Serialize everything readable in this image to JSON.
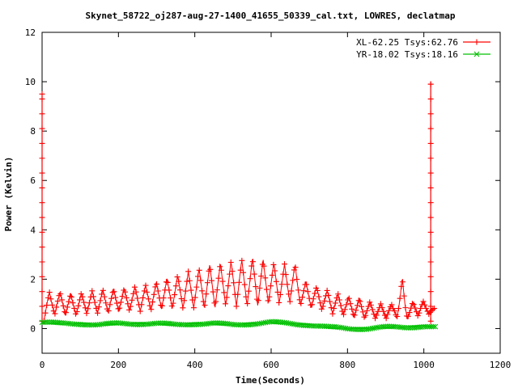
{
  "chart_data": {
    "type": "line",
    "title": "Skynet_58722_oj287-aug-27-1400_41655_50339_cal.txt, LOWRES, declatmap",
    "xlabel": "Time(Seconds)",
    "ylabel": "Power (Kelvin)",
    "xlim": [
      0,
      1200
    ],
    "ylim": [
      -1,
      12
    ],
    "xticks": [
      0,
      200,
      400,
      600,
      800,
      1000,
      1200
    ],
    "yticks": [
      0,
      2,
      4,
      6,
      8,
      10,
      12
    ],
    "grid": false,
    "legend_position": "top-right",
    "series": [
      {
        "name": "XL-62.25 Tsys:62.76",
        "color": "#ff0000",
        "marker": "plus",
        "spikes": [
          {
            "x": 0,
            "peak": 9.5
          },
          {
            "x": 1018,
            "peak": 9.9
          }
        ],
        "envelope": {
          "x": [
            5,
            40,
            80,
            120,
            160,
            200,
            240,
            280,
            320,
            360,
            400,
            440,
            480,
            520,
            560,
            600,
            640,
            660,
            680,
            720,
            760,
            800,
            840,
            880,
            920,
            945,
            960,
            990,
            1010,
            1030
          ],
          "low": [
            0.3,
            0.6,
            0.5,
            0.6,
            0.6,
            0.7,
            0.7,
            0.7,
            0.8,
            0.8,
            0.8,
            0.8,
            0.9,
            0.9,
            0.9,
            1.0,
            1.0,
            1.1,
            0.9,
            0.8,
            0.6,
            0.5,
            0.4,
            0.4,
            0.4,
            0.4,
            0.4,
            0.5,
            0.6,
            0.5
          ],
          "high": [
            1.5,
            1.5,
            1.4,
            1.5,
            1.6,
            1.6,
            1.7,
            1.8,
            2.0,
            2.2,
            2.4,
            2.6,
            2.7,
            2.8,
            2.9,
            2.7,
            2.6,
            2.7,
            2.0,
            1.7,
            1.5,
            1.3,
            1.2,
            1.0,
            1.0,
            2.1,
            1.0,
            1.2,
            1.0,
            0.8
          ]
        }
      },
      {
        "name": "YR-18.02 Tsys:18.16",
        "color": "#00c000",
        "marker": "cross",
        "x": [
          0,
          50,
          100,
          150,
          200,
          250,
          300,
          350,
          400,
          450,
          500,
          550,
          600,
          650,
          700,
          750,
          800,
          850,
          900,
          950,
          1000,
          1030
        ],
        "values": [
          0.25,
          0.2,
          0.2,
          0.15,
          0.2,
          0.2,
          0.2,
          0.15,
          0.2,
          0.2,
          0.15,
          0.2,
          0.25,
          0.2,
          0.15,
          0.05,
          0.0,
          0.0,
          0.05,
          0.05,
          0.1,
          0.05
        ]
      }
    ]
  }
}
